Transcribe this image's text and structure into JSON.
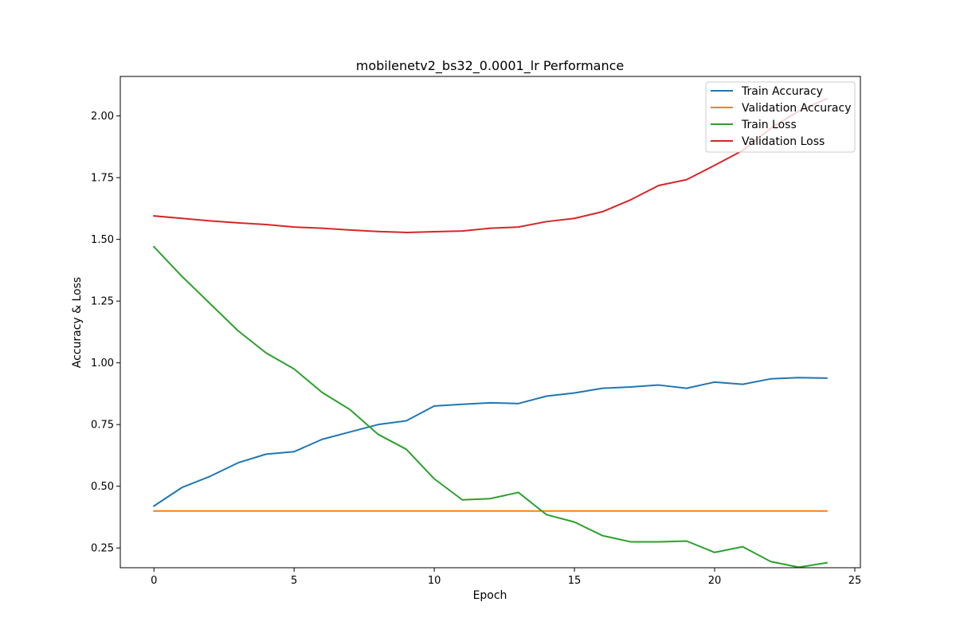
{
  "chart_data": {
    "type": "line",
    "title": "mobilenetv2_bs32_0.0001_lr Performance",
    "xlabel": "Epoch",
    "ylabel": "Accuracy & Loss",
    "xlim": [
      -1.2,
      25.2
    ],
    "ylim": [
      0.17,
      2.16
    ],
    "xticks": [
      0,
      5,
      10,
      15,
      20,
      25
    ],
    "xtick_labels": [
      "0",
      "5",
      "10",
      "15",
      "20",
      "25"
    ],
    "yticks": [
      0.25,
      0.5,
      0.75,
      1.0,
      1.25,
      1.5,
      1.75,
      2.0
    ],
    "ytick_labels": [
      "0.25",
      "0.50",
      "0.75",
      "1.00",
      "1.25",
      "1.50",
      "1.75",
      "2.00"
    ],
    "grid": false,
    "legend_position": "top-right",
    "x": [
      0,
      1,
      2,
      3,
      4,
      5,
      6,
      7,
      8,
      9,
      10,
      11,
      12,
      13,
      14,
      15,
      16,
      17,
      18,
      19,
      20,
      21,
      22,
      23,
      24
    ],
    "series": [
      {
        "name": "Train Accuracy",
        "color": "#1f77b4",
        "values": [
          0.42,
          0.495,
          0.54,
          0.595,
          0.63,
          0.64,
          0.69,
          0.72,
          0.75,
          0.765,
          0.825,
          0.832,
          0.838,
          0.835,
          0.865,
          0.878,
          0.897,
          0.902,
          0.91,
          0.897,
          0.922,
          0.913,
          0.935,
          0.94,
          0.938
        ]
      },
      {
        "name": "Validation Accuracy",
        "color": "#ff7f0e",
        "values": [
          0.4,
          0.4,
          0.4,
          0.4,
          0.4,
          0.4,
          0.4,
          0.4,
          0.4,
          0.4,
          0.4,
          0.4,
          0.4,
          0.4,
          0.4,
          0.4,
          0.4,
          0.4,
          0.4,
          0.4,
          0.4,
          0.4,
          0.4,
          0.4,
          0.4
        ]
      },
      {
        "name": "Train Loss",
        "color": "#2ca02c",
        "values": [
          1.47,
          1.35,
          1.24,
          1.13,
          1.04,
          0.975,
          0.88,
          0.81,
          0.71,
          0.65,
          0.53,
          0.445,
          0.45,
          0.475,
          0.385,
          0.355,
          0.3,
          0.275,
          0.275,
          0.278,
          0.232,
          0.255,
          0.195,
          0.172,
          0.19
        ]
      },
      {
        "name": "Validation Loss",
        "color": "#d62728",
        "values": [
          1.595,
          1.585,
          1.575,
          1.567,
          1.56,
          1.55,
          1.545,
          1.538,
          1.532,
          1.528,
          1.531,
          1.534,
          1.545,
          1.55,
          1.572,
          1.585,
          1.612,
          1.66,
          1.718,
          1.742,
          1.8,
          1.86,
          1.95,
          2.02,
          2.07
        ]
      }
    ]
  }
}
